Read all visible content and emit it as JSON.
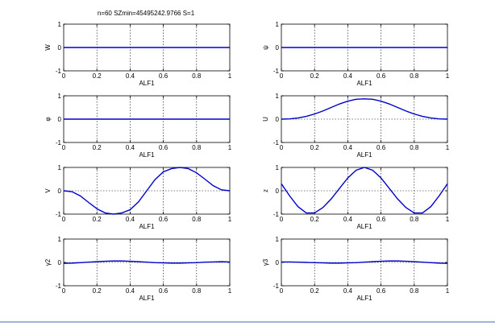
{
  "figure": {
    "title": "n=60 SZmin=45495242.9766 S=1"
  },
  "chart_data": [
    {
      "type": "line",
      "ylabel": "W",
      "xlabel": "ALF1",
      "xlim": [
        0,
        1
      ],
      "ylim": [
        -1,
        1
      ],
      "xticks": [
        "0",
        "0.2",
        "0.4",
        "0.6",
        "0.8",
        "1"
      ],
      "yticks": [
        "-1",
        "0",
        "1"
      ],
      "grid": true,
      "series": [
        {
          "x": [
            0,
            0.2,
            0.4,
            0.6,
            0.8,
            1
          ],
          "y": [
            0,
            0,
            0,
            0,
            0,
            0
          ]
        }
      ]
    },
    {
      "type": "line",
      "ylabel": "ψ",
      "xlabel": "ALF1",
      "xlim": [
        0,
        1
      ],
      "ylim": [
        -1,
        1
      ],
      "xticks": [
        "0",
        "0.2",
        "0.4",
        "0.6",
        "0.8",
        "1"
      ],
      "yticks": [
        "-1",
        "0",
        "1"
      ],
      "grid": true,
      "series": [
        {
          "x": [
            0,
            0.2,
            0.4,
            0.6,
            0.8,
            1
          ],
          "y": [
            0,
            0,
            0,
            0,
            0,
            0
          ]
        }
      ]
    },
    {
      "type": "line",
      "ylabel": "φ",
      "xlabel": "ALF1",
      "xlim": [
        0,
        1
      ],
      "ylim": [
        -1,
        1
      ],
      "xticks": [
        "0",
        "0.2",
        "0.4",
        "0.6",
        "0.8",
        "1"
      ],
      "yticks": [
        "-1",
        "0",
        "1"
      ],
      "grid": true,
      "series": [
        {
          "x": [
            0,
            0.2,
            0.4,
            0.6,
            0.8,
            1
          ],
          "y": [
            0,
            0,
            0,
            0,
            0,
            0
          ]
        }
      ]
    },
    {
      "type": "line",
      "ylabel": "U",
      "xlabel": "ALF1",
      "xlim": [
        0,
        1
      ],
      "ylim": [
        -1,
        1
      ],
      "xticks": [
        "0",
        "0.2",
        "0.4",
        "0.6",
        "0.8",
        "1"
      ],
      "yticks": [
        "-1",
        "0",
        "1"
      ],
      "grid": true,
      "series": [
        {
          "x": [
            0,
            0.05,
            0.1,
            0.15,
            0.2,
            0.25,
            0.3,
            0.35,
            0.4,
            0.45,
            0.5,
            0.55,
            0.6,
            0.65,
            0.7,
            0.75,
            0.8,
            0.85,
            0.9,
            0.95,
            1
          ],
          "y": [
            0,
            0.01,
            0.05,
            0.12,
            0.22,
            0.35,
            0.5,
            0.65,
            0.77,
            0.85,
            0.87,
            0.85,
            0.77,
            0.65,
            0.5,
            0.35,
            0.22,
            0.12,
            0.05,
            0.01,
            0
          ]
        }
      ]
    },
    {
      "type": "line",
      "ylabel": "V",
      "xlabel": "ALF1",
      "xlim": [
        0,
        1
      ],
      "ylim": [
        -1,
        1
      ],
      "xticks": [
        "0",
        "0.2",
        "0.4",
        "0.6",
        "0.8",
        "1"
      ],
      "yticks": [
        "-1",
        "0",
        "1"
      ],
      "grid": true,
      "series": [
        {
          "x": [
            0,
            0.05,
            0.1,
            0.15,
            0.2,
            0.25,
            0.3,
            0.35,
            0.4,
            0.45,
            0.5,
            0.55,
            0.6,
            0.65,
            0.7,
            0.75,
            0.8,
            0.85,
            0.9,
            0.95,
            1
          ],
          "y": [
            0,
            -0.04,
            -0.22,
            -0.5,
            -0.77,
            -0.95,
            -1,
            -0.95,
            -0.81,
            -0.48,
            0,
            0.48,
            0.81,
            0.95,
            1,
            0.95,
            0.77,
            0.5,
            0.22,
            0.04,
            0
          ]
        }
      ]
    },
    {
      "type": "line",
      "ylabel": "z",
      "xlabel": "ALF1",
      "xlim": [
        0,
        1
      ],
      "ylim": [
        -1,
        1
      ],
      "xticks": [
        "0",
        "0.2",
        "0.4",
        "0.6",
        "0.8",
        "1"
      ],
      "yticks": [
        "-1",
        "0",
        "1"
      ],
      "grid": true,
      "series": [
        {
          "x": [
            0,
            0.05,
            0.1,
            0.15,
            0.2,
            0.25,
            0.3,
            0.35,
            0.4,
            0.45,
            0.5,
            0.55,
            0.6,
            0.65,
            0.7,
            0.75,
            0.8,
            0.85,
            0.9,
            0.95,
            1
          ],
          "y": [
            0.3,
            -0.22,
            -0.68,
            -0.95,
            -0.95,
            -0.72,
            -0.35,
            0.1,
            0.55,
            0.88,
            1,
            0.88,
            0.55,
            0.1,
            -0.35,
            -0.72,
            -0.95,
            -0.95,
            -0.68,
            -0.22,
            0.3
          ]
        }
      ]
    },
    {
      "type": "line",
      "ylabel": "γ2",
      "xlabel": "ALF1",
      "xlim": [
        0,
        1
      ],
      "ylim": [
        -1,
        1
      ],
      "xticks": [
        "0",
        "0.2",
        "0.4",
        "0.6",
        "0.8",
        "1"
      ],
      "yticks": [
        "-1",
        "0",
        "1"
      ],
      "grid": true,
      "series": [
        {
          "x": [
            0,
            0.05,
            0.1,
            0.15,
            0.2,
            0.25,
            0.3,
            0.35,
            0.4,
            0.45,
            0.5,
            0.55,
            0.6,
            0.65,
            0.7,
            0.75,
            0.8,
            0.85,
            0.9,
            0.95,
            1
          ],
          "y": [
            -0.04,
            -0.03,
            -0.01,
            0.01,
            0.03,
            0.05,
            0.06,
            0.06,
            0.05,
            0.03,
            0.01,
            -0.01,
            -0.02,
            -0.03,
            -0.03,
            -0.02,
            -0.01,
            0.01,
            0.02,
            0.03,
            0.02
          ]
        }
      ]
    },
    {
      "type": "line",
      "ylabel": "γ3",
      "xlabel": "ALF1",
      "xlim": [
        0,
        1
      ],
      "ylim": [
        -1,
        1
      ],
      "xticks": [
        "0",
        "0.2",
        "0.4",
        "0.6",
        "0.8",
        "1"
      ],
      "yticks": [
        "-1",
        "0",
        "1"
      ],
      "grid": true,
      "series": [
        {
          "x": [
            0,
            0.05,
            0.1,
            0.15,
            0.2,
            0.25,
            0.3,
            0.35,
            0.4,
            0.45,
            0.5,
            0.55,
            0.6,
            0.65,
            0.7,
            0.75,
            0.8,
            0.85,
            0.9,
            0.95,
            1
          ],
          "y": [
            0.02,
            0.02,
            0.01,
            0,
            -0.01,
            -0.02,
            -0.03,
            -0.03,
            -0.02,
            -0.01,
            0.01,
            0.03,
            0.05,
            0.06,
            0.06,
            0.05,
            0.03,
            0.01,
            -0.01,
            -0.03,
            -0.04
          ]
        }
      ]
    }
  ],
  "style": {
    "line_color": "#0000cc",
    "axis_color": "#000000",
    "grid_color": "#000000",
    "bottom_rule_color": "#9fb6d6"
  }
}
